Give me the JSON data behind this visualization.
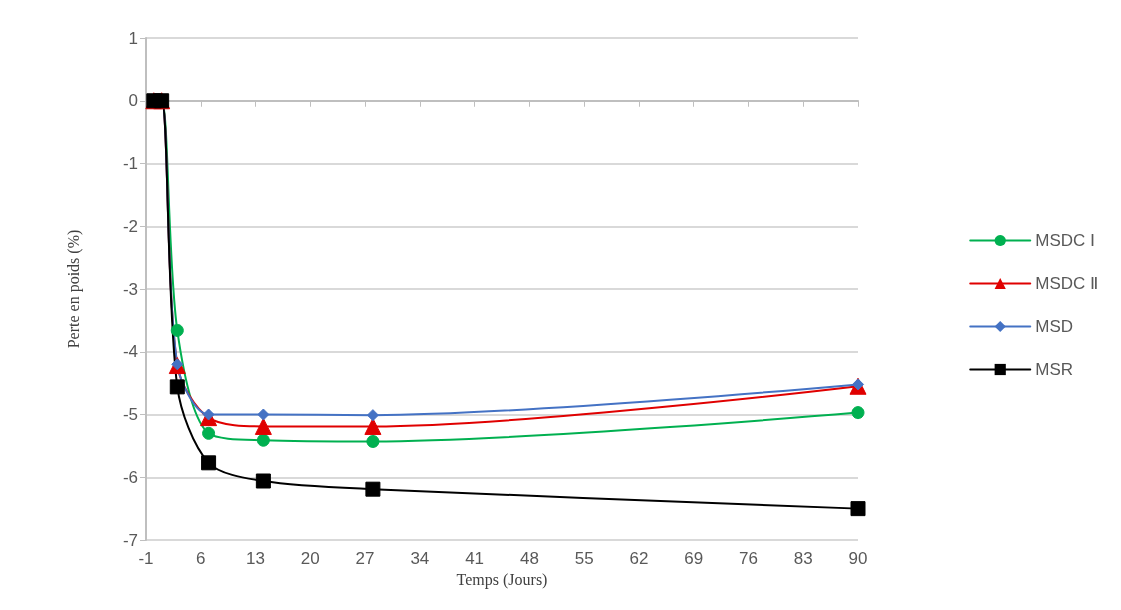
{
  "chart_data": {
    "type": "line",
    "xlabel": "Temps (Jours)",
    "ylabel": "Perte en poids (%)",
    "x": [
      0,
      1,
      3,
      7,
      14,
      28,
      90
    ],
    "series": [
      {
        "name": "MSDC Ⅰ",
        "color": "#00b050",
        "marker": "circle",
        "values": [
          0,
          0,
          -3.66,
          -5.3,
          -5.41,
          -5.43,
          -4.97
        ]
      },
      {
        "name": "MSDC Ⅱ",
        "color": "#e00000",
        "marker": "triangle",
        "values": [
          0,
          0,
          -4.22,
          -5.05,
          -5.19,
          -5.19,
          -4.55
        ]
      },
      {
        "name": "MSD",
        "color": "#4472c4",
        "marker": "diamond",
        "values": [
          0,
          0,
          -4.2,
          -5.0,
          -5.0,
          -5.01,
          -4.52
        ]
      },
      {
        "name": "MSR",
        "color": "#000000",
        "marker": "square",
        "values": [
          0,
          0,
          -4.56,
          -5.77,
          -6.06,
          -6.19,
          -6.5
        ]
      }
    ],
    "xlim": [
      -1,
      90
    ],
    "xticks": [
      -1,
      6,
      13,
      20,
      27,
      34,
      41,
      48,
      55,
      62,
      69,
      76,
      83,
      90
    ],
    "ylim": [
      -7,
      1
    ],
    "yticks": [
      -7,
      -6,
      -5,
      -4,
      -3,
      -2,
      -1,
      0,
      1
    ],
    "grid": "y",
    "legend": "right",
    "line_style": "solid"
  }
}
